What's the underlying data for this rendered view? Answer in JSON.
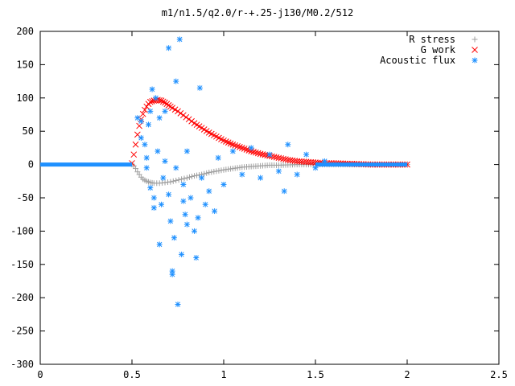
{
  "chart_data": {
    "type": "scatter",
    "title": "m1/n1.5/q2.0/r-+.25-j130/M0.2/512",
    "xlabel": "",
    "ylabel": "",
    "xlim": [
      0,
      2.5
    ],
    "ylim": [
      -300,
      200
    ],
    "x_ticks": [
      "0",
      "0.5",
      "1",
      "1.5",
      "2",
      "2.5"
    ],
    "y_ticks": [
      "200",
      "150",
      "100",
      "50",
      "0",
      "-50",
      "-100",
      "-150",
      "-200",
      "-250",
      "-300"
    ],
    "x_tick_values": [
      0,
      0.5,
      1,
      1.5,
      2,
      2.5
    ],
    "y_tick_values": [
      200,
      150,
      100,
      50,
      0,
      -50,
      -100,
      -150,
      -200,
      -250,
      -300
    ],
    "grid": false,
    "legend_position": "top-right",
    "series": [
      {
        "name": "R stress",
        "marker": "plus",
        "color": "#a0a0a0",
        "points": [
          [
            0.5,
            0
          ],
          [
            0.51,
            -2
          ],
          [
            0.52,
            -6
          ],
          [
            0.53,
            -11
          ],
          [
            0.54,
            -15
          ],
          [
            0.55,
            -19
          ],
          [
            0.56,
            -22
          ],
          [
            0.58,
            -25
          ],
          [
            0.6,
            -27
          ],
          [
            0.62,
            -28
          ],
          [
            0.65,
            -28
          ],
          [
            0.68,
            -27
          ],
          [
            0.71,
            -26
          ],
          [
            0.74,
            -24
          ],
          [
            0.77,
            -22
          ],
          [
            0.8,
            -20
          ],
          [
            0.84,
            -17
          ],
          [
            0.88,
            -15
          ],
          [
            0.92,
            -12
          ],
          [
            0.96,
            -10
          ],
          [
            1.0,
            -8
          ],
          [
            1.05,
            -6
          ],
          [
            1.1,
            -4
          ],
          [
            1.15,
            -3
          ],
          [
            1.2,
            -2
          ],
          [
            1.25,
            -1
          ],
          [
            1.3,
            -1
          ],
          [
            1.4,
            0
          ],
          [
            1.5,
            0
          ],
          [
            1.6,
            0
          ],
          [
            1.7,
            0
          ],
          [
            1.8,
            0
          ],
          [
            1.9,
            0
          ],
          [
            2.0,
            0
          ]
        ]
      },
      {
        "name": "G work",
        "marker": "cross",
        "color": "#ff0000",
        "points": [
          [
            0.5,
            2
          ],
          [
            0.51,
            15
          ],
          [
            0.52,
            30
          ],
          [
            0.53,
            45
          ],
          [
            0.54,
            58
          ],
          [
            0.55,
            68
          ],
          [
            0.56,
            76
          ],
          [
            0.57,
            82
          ],
          [
            0.58,
            87
          ],
          [
            0.59,
            91
          ],
          [
            0.6,
            94
          ],
          [
            0.62,
            96
          ],
          [
            0.64,
            97
          ],
          [
            0.66,
            96
          ],
          [
            0.68,
            93
          ],
          [
            0.7,
            89
          ],
          [
            0.72,
            85
          ],
          [
            0.75,
            80
          ],
          [
            0.78,
            74
          ],
          [
            0.81,
            68
          ],
          [
            0.84,
            62
          ],
          [
            0.88,
            55
          ],
          [
            0.92,
            48
          ],
          [
            0.96,
            42
          ],
          [
            1.0,
            36
          ],
          [
            1.05,
            30
          ],
          [
            1.1,
            25
          ],
          [
            1.15,
            20
          ],
          [
            1.2,
            16
          ],
          [
            1.25,
            13
          ],
          [
            1.3,
            10
          ],
          [
            1.35,
            7
          ],
          [
            1.4,
            5
          ],
          [
            1.45,
            4
          ],
          [
            1.5,
            3
          ],
          [
            1.55,
            2
          ],
          [
            1.6,
            2
          ],
          [
            1.7,
            1
          ],
          [
            1.8,
            0
          ],
          [
            1.9,
            0
          ],
          [
            2.0,
            0
          ]
        ]
      },
      {
        "name": "Acoustic flux",
        "marker": "star",
        "color": "#1e90ff",
        "points": [
          [
            0.0,
            0
          ],
          [
            0.1,
            0
          ],
          [
            0.2,
            0
          ],
          [
            0.3,
            0
          ],
          [
            0.4,
            0
          ],
          [
            0.5,
            0
          ],
          [
            0.53,
            70
          ],
          [
            0.55,
            65
          ],
          [
            0.55,
            40
          ],
          [
            0.57,
            30
          ],
          [
            0.58,
            10
          ],
          [
            0.58,
            -5
          ],
          [
            0.59,
            60
          ],
          [
            0.6,
            80
          ],
          [
            0.6,
            -35
          ],
          [
            0.61,
            113
          ],
          [
            0.62,
            -50
          ],
          [
            0.62,
            -65
          ],
          [
            0.63,
            100
          ],
          [
            0.64,
            20
          ],
          [
            0.65,
            70
          ],
          [
            0.65,
            -120
          ],
          [
            0.66,
            -60
          ],
          [
            0.67,
            -20
          ],
          [
            0.68,
            80
          ],
          [
            0.68,
            5
          ],
          [
            0.7,
            175
          ],
          [
            0.7,
            -45
          ],
          [
            0.71,
            -85
          ],
          [
            0.72,
            -160
          ],
          [
            0.72,
            -165
          ],
          [
            0.73,
            -110
          ],
          [
            0.74,
            125
          ],
          [
            0.74,
            -5
          ],
          [
            0.75,
            -210
          ],
          [
            0.76,
            188
          ],
          [
            0.77,
            -135
          ],
          [
            0.78,
            -55
          ],
          [
            0.78,
            -30
          ],
          [
            0.79,
            -75
          ],
          [
            0.8,
            -90
          ],
          [
            0.8,
            20
          ],
          [
            0.82,
            -50
          ],
          [
            0.84,
            -100
          ],
          [
            0.85,
            -140
          ],
          [
            0.86,
            -80
          ],
          [
            0.87,
            115
          ],
          [
            0.88,
            -20
          ],
          [
            0.9,
            -60
          ],
          [
            0.92,
            -40
          ],
          [
            0.95,
            -70
          ],
          [
            0.97,
            10
          ],
          [
            1.0,
            -30
          ],
          [
            1.05,
            20
          ],
          [
            1.1,
            -15
          ],
          [
            1.15,
            25
          ],
          [
            1.2,
            -20
          ],
          [
            1.25,
            15
          ],
          [
            1.3,
            -10
          ],
          [
            1.33,
            -40
          ],
          [
            1.35,
            30
          ],
          [
            1.4,
            -15
          ],
          [
            1.45,
            15
          ],
          [
            1.5,
            -5
          ],
          [
            1.55,
            5
          ],
          [
            1.6,
            0
          ],
          [
            1.7,
            0
          ],
          [
            1.8,
            0
          ],
          [
            1.9,
            0
          ],
          [
            2.0,
            0
          ]
        ]
      }
    ]
  }
}
